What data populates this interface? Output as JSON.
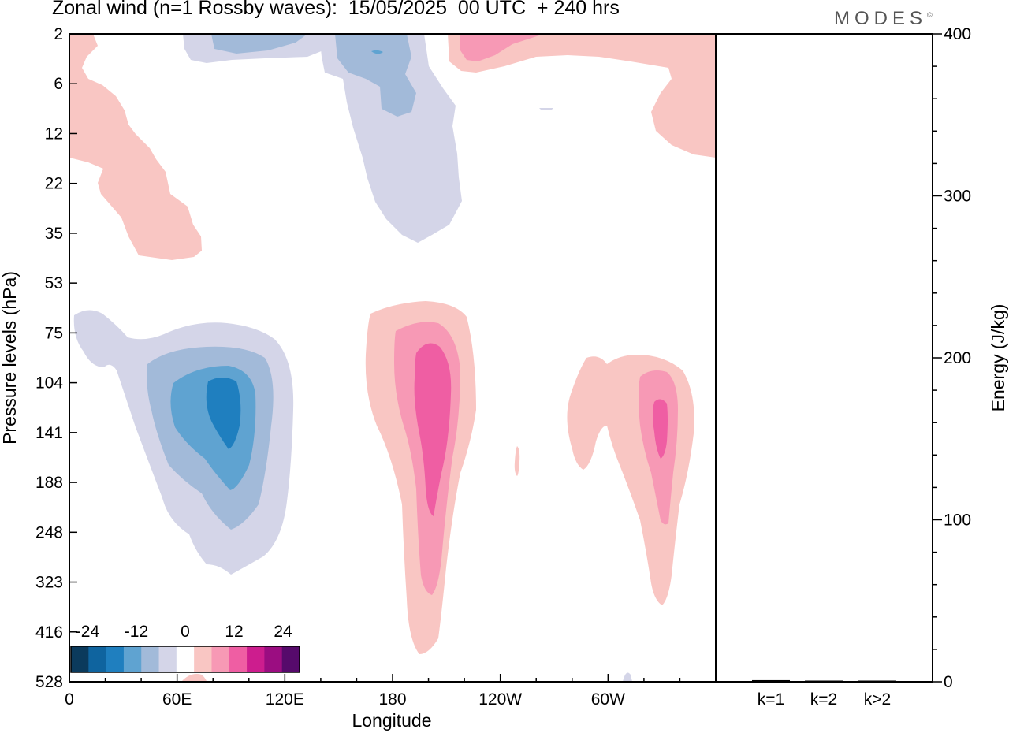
{
  "title": "Zonal wind (n=1 Rossby waves):  15/05/2025  00 UTC  + 240 hrs",
  "brand": "MODES",
  "brand_mark": "©",
  "chart_data": [
    {
      "type": "contour",
      "xlabel": "Longitude",
      "ylabel": "Pressure levels (hPa)",
      "x_ticks": [
        "0",
        "60E",
        "120E",
        "180",
        "120W",
        "60W"
      ],
      "y_ticks": [
        "2",
        "6",
        "12",
        "22",
        "35",
        "53",
        "75",
        "104",
        "141",
        "188",
        "248",
        "323",
        "416",
        "528"
      ],
      "colorbar": {
        "labels": [
          "-24",
          "-12",
          "0",
          "12",
          "24"
        ],
        "levels": [
          -30,
          -24,
          -18,
          -12,
          -6,
          -3,
          3,
          6,
          12,
          18,
          24,
          30
        ],
        "colors": [
          "#0b3a5c",
          "#0f649f",
          "#1f7fbf",
          "#5fa3d1",
          "#a2bad9",
          "#d4d5e8",
          "#ffffff",
          "#f9c6c3",
          "#f799b5",
          "#ef5ea3",
          "#cd1d8e",
          "#9b0d81",
          "#560a6b"
        ]
      },
      "features": [
        {
          "name": "upper-negative-a",
          "sign": "negative",
          "lon": [
            60,
            150
          ],
          "levels_hPa": [
            2,
            3
          ],
          "peak": -6
        },
        {
          "name": "upper-negative-b",
          "sign": "negative",
          "lon": [
            140,
            210
          ],
          "levels_hPa": [
            2,
            40
          ],
          "peak": -12
        },
        {
          "name": "upper-positive-a",
          "sign": "positive",
          "lon": [
            0,
            70
          ],
          "levels_hPa": [
            2,
            38
          ],
          "peak": 3
        },
        {
          "name": "upper-positive-b",
          "sign": "positive",
          "lon": [
            200,
            340
          ],
          "levels_hPa": [
            2,
            16
          ],
          "peak": 6
        },
        {
          "name": "west-negative-cell",
          "sign": "negative",
          "lon": [
            0,
            125
          ],
          "levels_hPa": [
            60,
            330
          ],
          "peak": -24
        },
        {
          "name": "dateline-positive-cell",
          "sign": "positive",
          "lon": [
            165,
            220
          ],
          "levels_hPa": [
            65,
            470
          ],
          "peak": 18
        },
        {
          "name": "eastern-positive-cell",
          "sign": "positive",
          "lon": [
            265,
            335
          ],
          "levels_hPa": [
            95,
            300
          ],
          "peak": 18
        }
      ]
    },
    {
      "type": "bar",
      "ylabel": "Energy (J/kg)",
      "categories": [
        "k=1",
        "k=2",
        "k>2"
      ],
      "values": [
        1,
        0,
        0.5
      ],
      "ylim": [
        0,
        400
      ],
      "y_ticks": [
        0,
        100,
        200,
        300,
        400
      ],
      "y_minor_step": 20
    }
  ]
}
